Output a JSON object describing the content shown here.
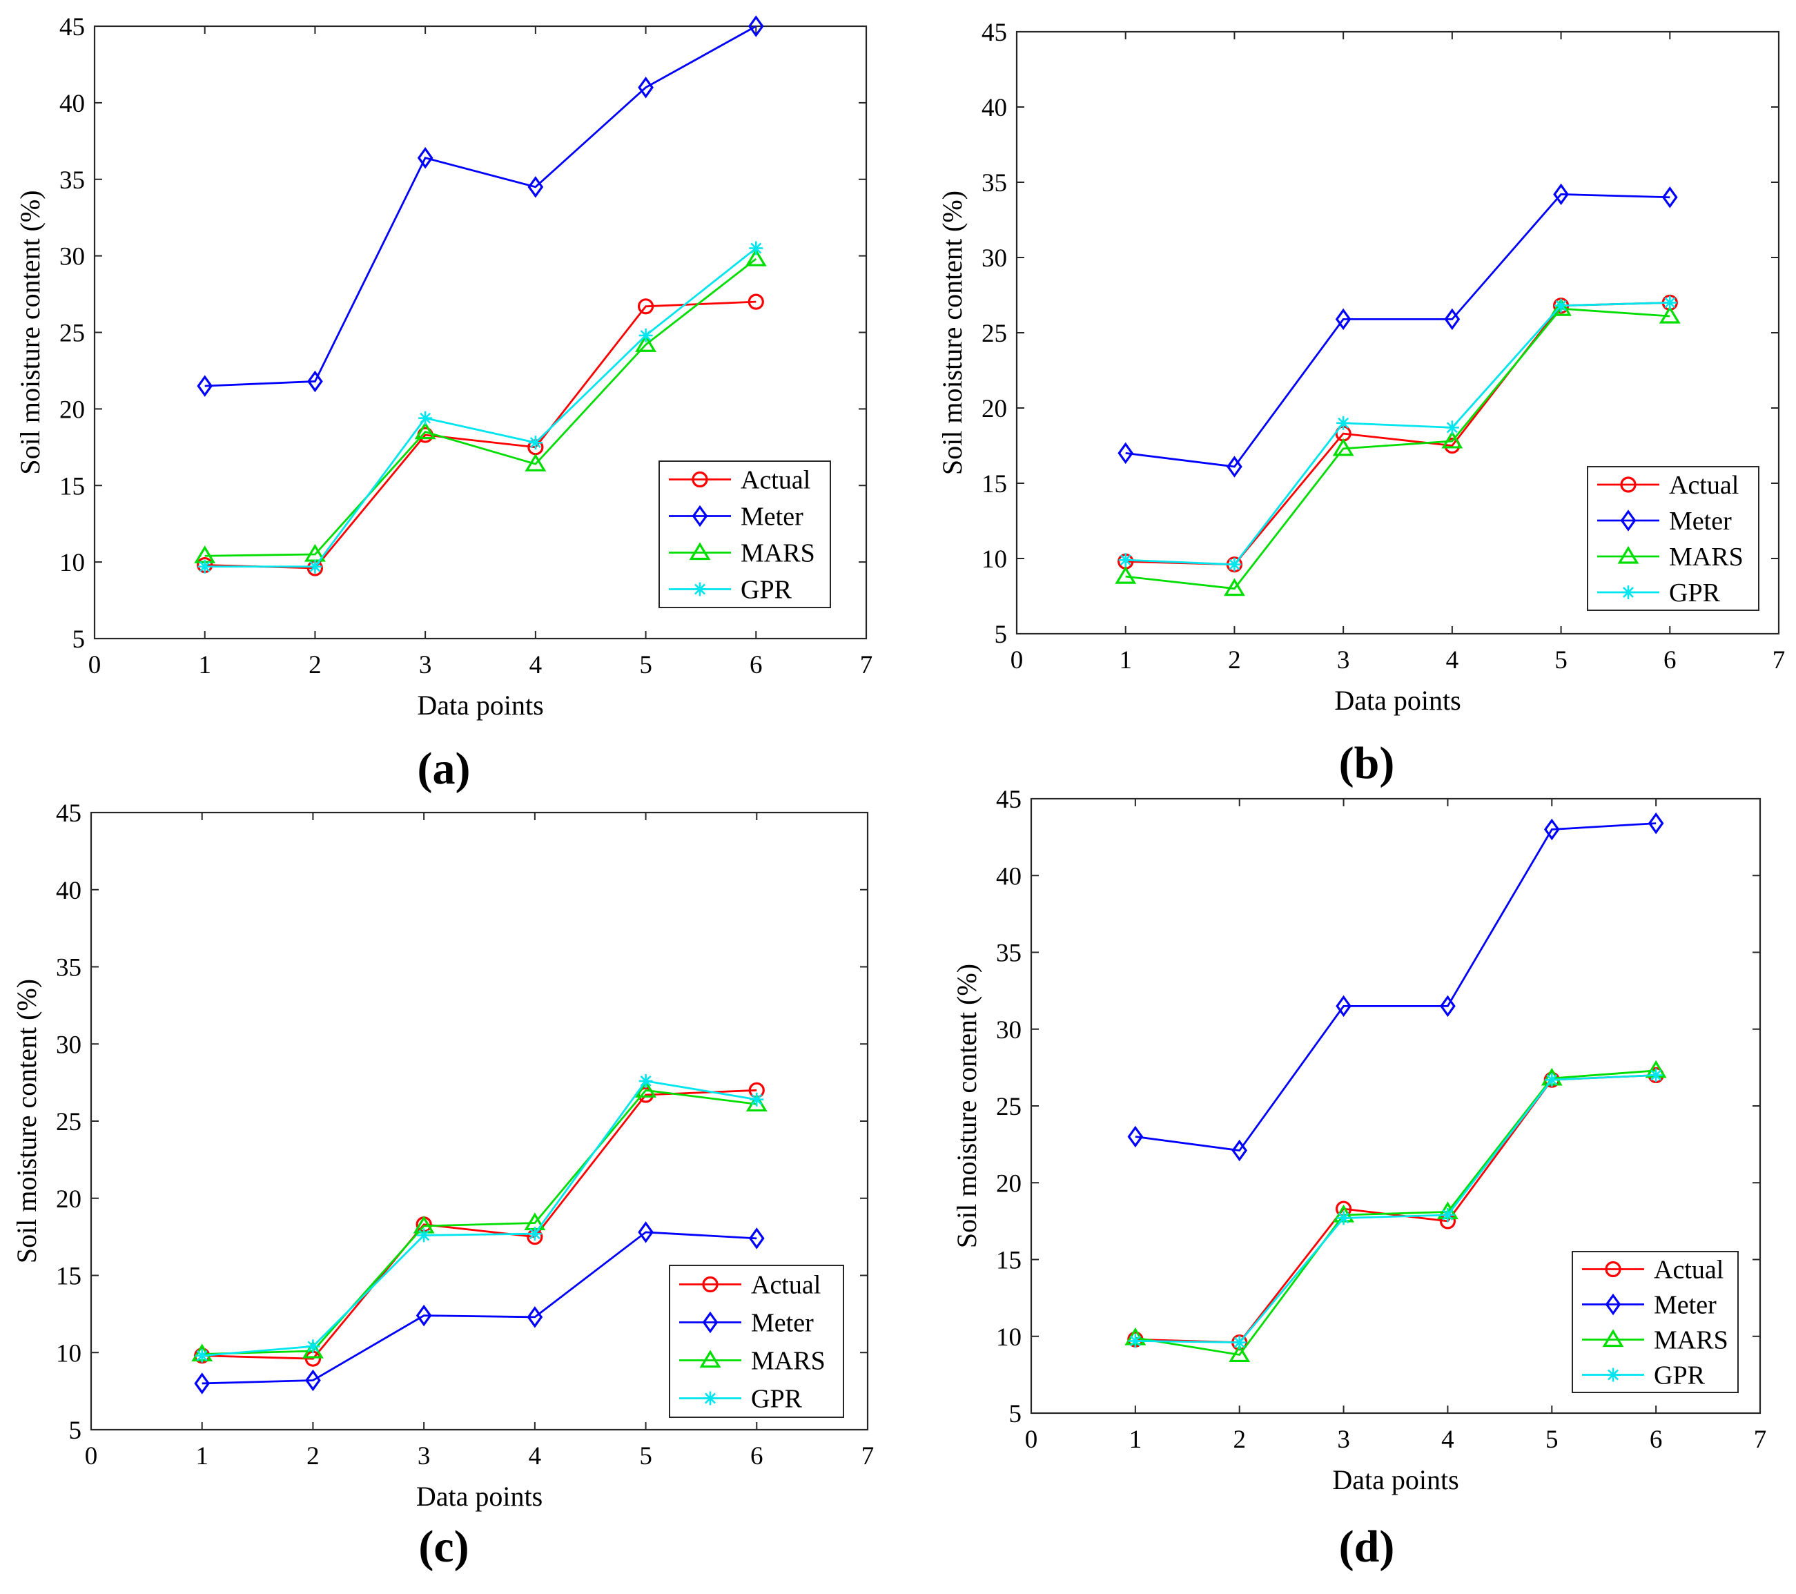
{
  "colors": {
    "Actual": "#ff0000",
    "Meter": "#0000ff",
    "MARS": "#00dd00",
    "GPR": "#00e5ee"
  },
  "markers": {
    "Actual": "circle",
    "Meter": "diamond",
    "MARS": "triangle",
    "GPR": "asterisk"
  },
  "chart_data": [
    {
      "panel": "a",
      "caption": "(a)",
      "type": "line",
      "title": "",
      "xlabel": "Data points",
      "ylabel": "Soil moisture content (%)",
      "xlim": [
        0,
        7
      ],
      "ylim": [
        5,
        45
      ],
      "xticks": [
        0,
        1,
        2,
        3,
        4,
        5,
        6,
        7
      ],
      "yticks": [
        5,
        10,
        15,
        20,
        25,
        30,
        35,
        40,
        45
      ],
      "grid": false,
      "legend_position": "bottom-right",
      "x": [
        1,
        2,
        3,
        4,
        5,
        6
      ],
      "series": [
        {
          "name": "Actual",
          "values": [
            9.8,
            9.6,
            18.3,
            17.5,
            26.7,
            27.0
          ]
        },
        {
          "name": "Meter",
          "values": [
            21.5,
            21.8,
            36.4,
            34.5,
            41.0,
            45.0
          ]
        },
        {
          "name": "MARS",
          "values": [
            10.4,
            10.5,
            18.5,
            16.4,
            24.2,
            29.8
          ]
        },
        {
          "name": "GPR",
          "values": [
            9.7,
            9.7,
            19.4,
            17.8,
            24.8,
            30.5
          ]
        }
      ]
    },
    {
      "panel": "b",
      "caption": "(b)",
      "type": "line",
      "title": "",
      "xlabel": "Data points",
      "ylabel": "Soil moisture content (%)",
      "xlim": [
        0,
        7
      ],
      "ylim": [
        5,
        45
      ],
      "xticks": [
        0,
        1,
        2,
        3,
        4,
        5,
        6,
        7
      ],
      "yticks": [
        5,
        10,
        15,
        20,
        25,
        30,
        35,
        40,
        45
      ],
      "grid": false,
      "legend_position": "bottom-right",
      "x": [
        1,
        2,
        3,
        4,
        5,
        6
      ],
      "series": [
        {
          "name": "Actual",
          "values": [
            9.8,
            9.6,
            18.3,
            17.5,
            26.8,
            27.0
          ]
        },
        {
          "name": "Meter",
          "values": [
            17.0,
            16.1,
            25.9,
            25.9,
            34.2,
            34.0
          ]
        },
        {
          "name": "MARS",
          "values": [
            8.8,
            8.0,
            17.3,
            17.8,
            26.6,
            26.1
          ]
        },
        {
          "name": "GPR",
          "values": [
            9.9,
            9.6,
            19.0,
            18.7,
            26.8,
            27.0
          ]
        }
      ]
    },
    {
      "panel": "c",
      "caption": "(c)",
      "type": "line",
      "title": "",
      "xlabel": "Data points",
      "ylabel": "Soil moisture content (%)",
      "xlim": [
        0,
        7
      ],
      "ylim": [
        5,
        45
      ],
      "xticks": [
        0,
        1,
        2,
        3,
        4,
        5,
        6,
        7
      ],
      "yticks": [
        5,
        10,
        15,
        20,
        25,
        30,
        35,
        40,
        45
      ],
      "grid": false,
      "legend_position": "bottom-right",
      "x": [
        1,
        2,
        3,
        4,
        5,
        6
      ],
      "series": [
        {
          "name": "Actual",
          "values": [
            9.8,
            9.6,
            18.3,
            17.5,
            26.7,
            27.0
          ]
        },
        {
          "name": "Meter",
          "values": [
            8.0,
            8.2,
            12.4,
            12.3,
            17.8,
            17.4
          ]
        },
        {
          "name": "MARS",
          "values": [
            9.9,
            10.1,
            18.2,
            18.4,
            27.0,
            26.1
          ]
        },
        {
          "name": "GPR",
          "values": [
            9.8,
            10.4,
            17.6,
            17.7,
            27.6,
            26.4
          ]
        }
      ]
    },
    {
      "panel": "d",
      "caption": "(d)",
      "type": "line",
      "title": "",
      "xlabel": "Data points",
      "ylabel": "Soil moisture content (%)",
      "xlim": [
        0,
        7
      ],
      "ylim": [
        5,
        45
      ],
      "xticks": [
        0,
        1,
        2,
        3,
        4,
        5,
        6,
        7
      ],
      "yticks": [
        5,
        10,
        15,
        20,
        25,
        30,
        35,
        40,
        45
      ],
      "grid": false,
      "legend_position": "bottom-right",
      "x": [
        1,
        2,
        3,
        4,
        5,
        6
      ],
      "series": [
        {
          "name": "Actual",
          "values": [
            9.8,
            9.6,
            18.3,
            17.5,
            26.7,
            27.0
          ]
        },
        {
          "name": "Meter",
          "values": [
            23.0,
            22.1,
            31.5,
            31.5,
            43.0,
            43.4
          ]
        },
        {
          "name": "MARS",
          "values": [
            9.9,
            8.8,
            17.9,
            18.1,
            26.8,
            27.3
          ]
        },
        {
          "name": "GPR",
          "values": [
            9.7,
            9.6,
            17.7,
            17.9,
            26.7,
            27.0
          ]
        }
      ]
    }
  ]
}
